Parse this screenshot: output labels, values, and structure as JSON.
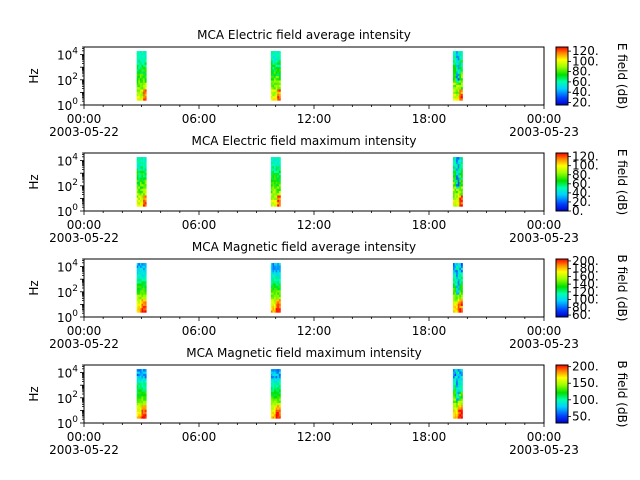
{
  "chart_data": [
    {
      "type": "heatmap",
      "title": "MCA  Electric field average intensity",
      "ylabel": "Hz",
      "y_scale": "log",
      "y_ticks": [
        "10^0",
        "10^2",
        "10^4"
      ],
      "x_ticks": [
        "00:00",
        "06:00",
        "12:00",
        "18:00",
        "00:00"
      ],
      "x_dates": [
        "2003-05-22",
        "2003-05-23"
      ],
      "xlim": [
        "2003-05-22 00:00",
        "2003-05-23 00:00"
      ],
      "ylim": [
        1,
        40000
      ],
      "colorbar_label": "E field (dB)",
      "colorbar_ticks": [
        "20.",
        "40.",
        "60.",
        "80.",
        "100.",
        "120."
      ],
      "colorbar_range": [
        15,
        128
      ],
      "bursts": [
        {
          "start": "02:45",
          "end": "03:15",
          "profile": "efield"
        },
        {
          "start": "09:45",
          "end": "10:15",
          "profile": "efield"
        },
        {
          "start": "19:15",
          "end": "19:45",
          "profile": "efield-noisy"
        }
      ]
    },
    {
      "type": "heatmap",
      "title": "MCA  Electric field maximum intensity",
      "ylabel": "Hz",
      "y_scale": "log",
      "y_ticks": [
        "10^0",
        "10^2",
        "10^4"
      ],
      "x_ticks": [
        "00:00",
        "06:00",
        "12:00",
        "18:00",
        "00:00"
      ],
      "x_dates": [
        "2003-05-22",
        "2003-05-23"
      ],
      "xlim": [
        "2003-05-22 00:00",
        "2003-05-23 00:00"
      ],
      "ylim": [
        1,
        40000
      ],
      "colorbar_label": "E field (dB)",
      "colorbar_ticks": [
        "0.",
        "20.",
        "40.",
        "60.",
        "80.",
        "100.",
        "120."
      ],
      "colorbar_range": [
        0,
        128
      ],
      "bursts": [
        {
          "start": "02:45",
          "end": "03:15",
          "profile": "efield"
        },
        {
          "start": "09:45",
          "end": "10:15",
          "profile": "efield"
        },
        {
          "start": "19:15",
          "end": "19:45",
          "profile": "efield-noisy"
        }
      ]
    },
    {
      "type": "heatmap",
      "title": "MCA  Magnetic field average intensity",
      "ylabel": "Hz",
      "y_scale": "log",
      "y_ticks": [
        "10^0",
        "10^2",
        "10^4"
      ],
      "x_ticks": [
        "00:00",
        "06:00",
        "12:00",
        "18:00",
        "00:00"
      ],
      "x_dates": [
        "2003-05-22",
        "2003-05-23"
      ],
      "xlim": [
        "2003-05-22 00:00",
        "2003-05-23 00:00"
      ],
      "ylim": [
        1,
        40000
      ],
      "colorbar_label": "B field (dB)",
      "colorbar_ticks": [
        "60.",
        "80.",
        "100.",
        "120.",
        "140.",
        "160.",
        "180.",
        "200."
      ],
      "colorbar_range": [
        55,
        205
      ],
      "bursts": [
        {
          "start": "02:45",
          "end": "03:15",
          "profile": "bfield"
        },
        {
          "start": "09:45",
          "end": "10:15",
          "profile": "bfield"
        },
        {
          "start": "19:15",
          "end": "19:45",
          "profile": "bfield-noisy"
        }
      ]
    },
    {
      "type": "heatmap",
      "title": "MCA  Magnetic field maximum intensity",
      "ylabel": "Hz",
      "y_scale": "log",
      "y_ticks": [
        "10^0",
        "10^2",
        "10^4"
      ],
      "x_ticks": [
        "00:00",
        "06:00",
        "12:00",
        "18:00",
        "00:00"
      ],
      "x_dates": [
        "2003-05-22",
        "2003-05-23"
      ],
      "xlim": [
        "2003-05-22 00:00",
        "2003-05-23 00:00"
      ],
      "ylim": [
        1,
        40000
      ],
      "colorbar_label": "B field (dB)",
      "colorbar_ticks": [
        "50.",
        "100.",
        "150.",
        "200."
      ],
      "colorbar_range": [
        30,
        205
      ],
      "bursts": [
        {
          "start": "02:45",
          "end": "03:15",
          "profile": "bfield"
        },
        {
          "start": "09:45",
          "end": "10:15",
          "profile": "bfield"
        },
        {
          "start": "19:15",
          "end": "19:45",
          "profile": "bfield-noisy"
        }
      ]
    }
  ]
}
